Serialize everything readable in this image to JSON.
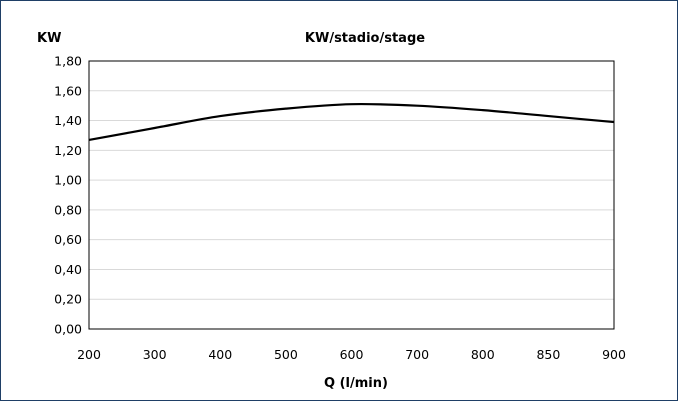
{
  "chart_data": {
    "type": "line",
    "title": "KW/stadio/stage",
    "ylabel": "KW",
    "xlabel": "Q (l/min)",
    "x": [
      "200",
      "300",
      "400",
      "500",
      "600",
      "700",
      "800",
      "850",
      "900"
    ],
    "series": [
      {
        "values": [
          1.27,
          1.35,
          1.43,
          1.48,
          1.51,
          1.5,
          1.47,
          1.43,
          1.39
        ]
      }
    ],
    "y_ticks": [
      "0,00",
      "0,20",
      "0,40",
      "0,60",
      "0,80",
      "1,00",
      "1,20",
      "1,40",
      "1,60",
      "1,80"
    ],
    "ylim": [
      0,
      1.8
    ],
    "grid": true,
    "legend": "none"
  }
}
